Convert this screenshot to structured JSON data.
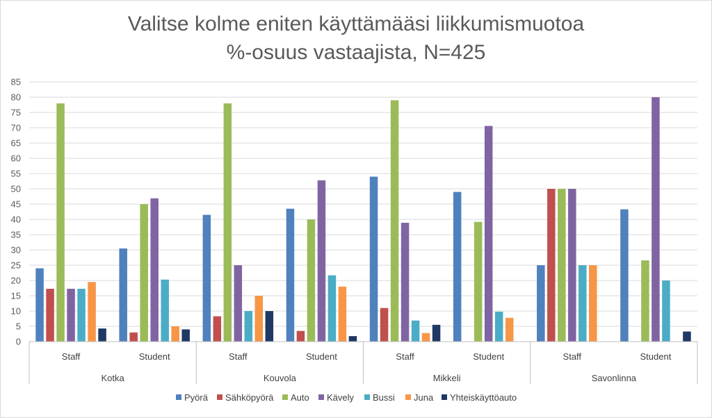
{
  "chart_data": {
    "type": "bar",
    "title": "Valitse kolme eniten käyttämääsi liikkumismuotoa",
    "subtitle": "%-osuus vastaajista, N=425",
    "ylim": [
      0,
      85
    ],
    "yticks": [
      0,
      5,
      10,
      15,
      20,
      25,
      30,
      35,
      40,
      45,
      50,
      55,
      60,
      65,
      70,
      75,
      80,
      85
    ],
    "grid": true,
    "legend_position": "bottom",
    "groups": [
      {
        "name": "Kotka",
        "categories": [
          "Staff",
          "Student"
        ]
      },
      {
        "name": "Kouvola",
        "categories": [
          "Staff",
          "Student"
        ]
      },
      {
        "name": "Mikkeli",
        "categories": [
          "Staff",
          "Student"
        ]
      },
      {
        "name": "Savonlinna",
        "categories": [
          "Staff",
          "Student"
        ]
      }
    ],
    "series": [
      {
        "name": "Pyörä",
        "color": "#4f81bd",
        "values": [
          24,
          30.5,
          41.5,
          43.5,
          54,
          49,
          25,
          43.3
        ]
      },
      {
        "name": "Sähköpyörä",
        "color": "#c0504d",
        "values": [
          17.3,
          3,
          8.3,
          3.5,
          11,
          null,
          50,
          null
        ]
      },
      {
        "name": "Auto",
        "color": "#9bbb59",
        "values": [
          78,
          45,
          78,
          40,
          79,
          39.2,
          50,
          26.6
        ]
      },
      {
        "name": "Kävely",
        "color": "#8064a2",
        "values": [
          17.3,
          46.9,
          25,
          52.8,
          38.9,
          70.6,
          50,
          80
        ]
      },
      {
        "name": "Bussi",
        "color": "#4bacc6",
        "values": [
          17.3,
          20.3,
          10,
          21.7,
          6.9,
          9.8,
          25,
          20
        ]
      },
      {
        "name": "Juna",
        "color": "#f79646",
        "values": [
          19.5,
          5,
          15,
          18,
          2.8,
          7.8,
          25,
          null
        ]
      },
      {
        "name": "Yhteiskäyttöauto",
        "color": "#1f3864",
        "values": [
          4.3,
          4,
          10,
          1.8,
          5.5,
          null,
          null,
          3.3
        ]
      }
    ]
  }
}
